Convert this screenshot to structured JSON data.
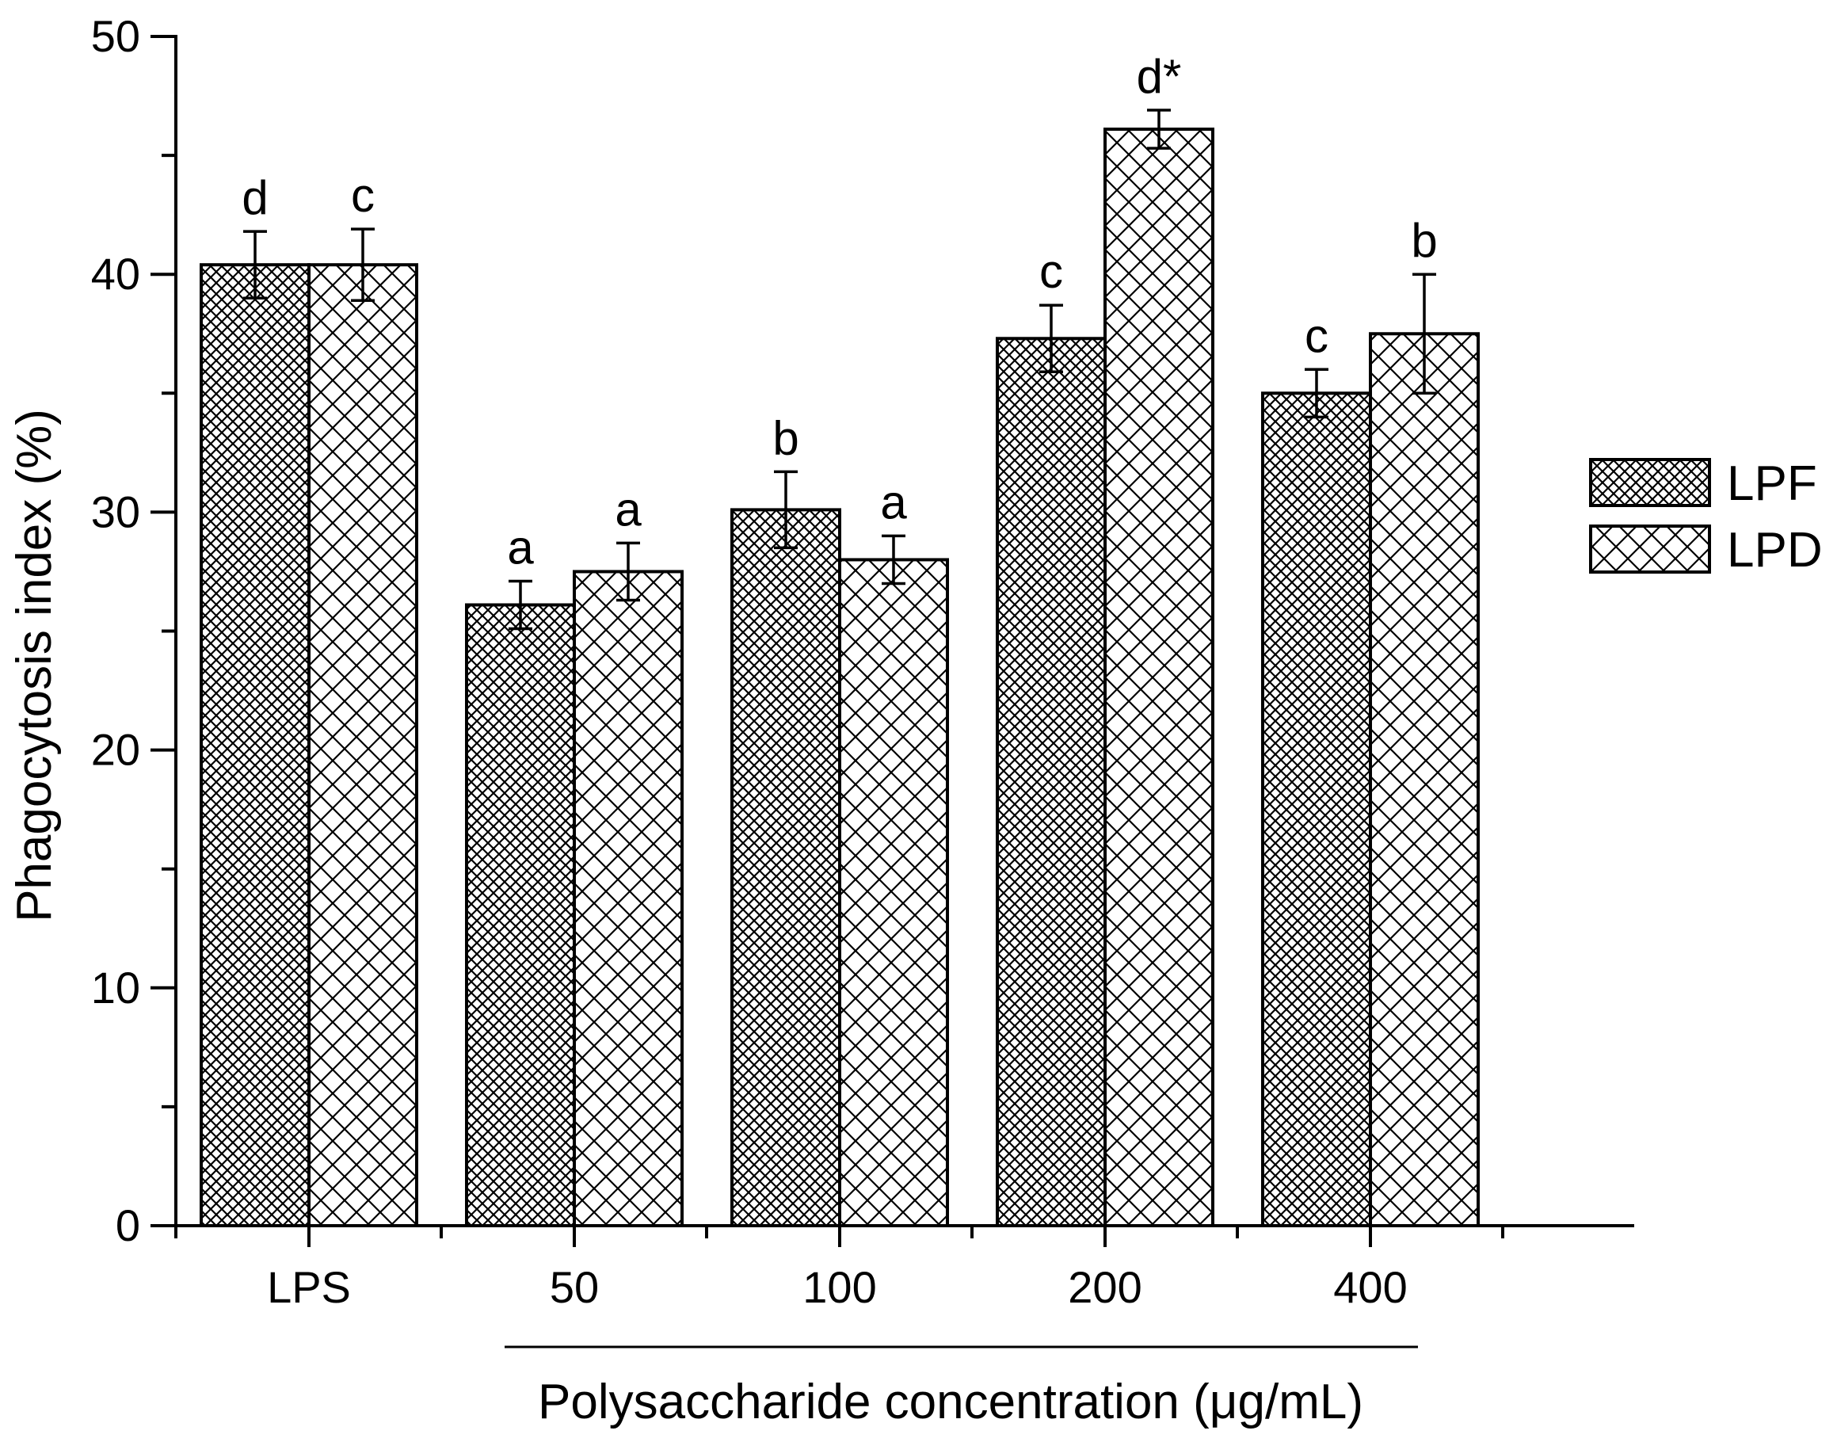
{
  "chart_data": {
    "type": "bar",
    "categories": [
      "LPS",
      "50",
      "100",
      "200",
      "400"
    ],
    "series": [
      {
        "name": "LPF",
        "values": [
          40.4,
          26.1,
          30.1,
          37.3,
          35.0
        ],
        "errors": [
          1.4,
          1.0,
          1.6,
          1.4,
          1.0
        ],
        "labels": [
          "d",
          "a",
          "b",
          "c",
          "c"
        ],
        "pattern": "dense-crosshatch"
      },
      {
        "name": "LPD",
        "values": [
          40.4,
          27.5,
          28.0,
          46.1,
          37.5
        ],
        "errors": [
          1.5,
          1.2,
          1.0,
          0.8,
          2.5
        ],
        "labels": [
          "c",
          "a",
          "a",
          "d*",
          "b"
        ],
        "pattern": "open-crosshatch"
      }
    ],
    "title": "",
    "xlabel": "Polysaccharide concentration (μg/mL)",
    "ylabel": "Phagocytosis index (%)",
    "ylim": [
      0,
      50
    ],
    "yticks": [
      "0",
      "10",
      "20",
      "30",
      "40",
      "50"
    ],
    "grid": false,
    "legend_position": "right",
    "colors": {
      "stroke": "#000000",
      "fill": "#ffffff"
    }
  }
}
